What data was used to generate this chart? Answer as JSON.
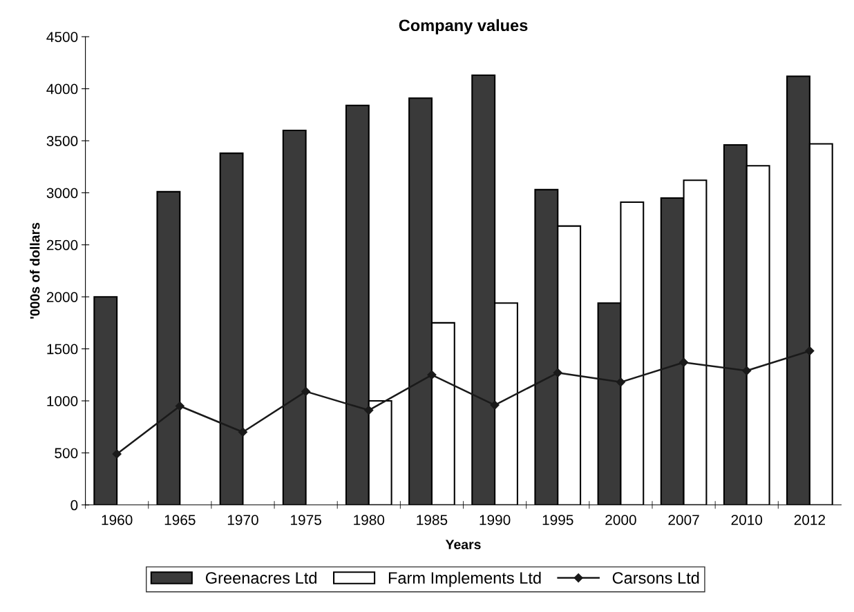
{
  "chart_data": {
    "type": "bar",
    "title": "Company values",
    "xlabel": "Years",
    "ylabel": "'000s of dollars",
    "categories": [
      "1960",
      "1965",
      "1970",
      "1975",
      "1980",
      "1985",
      "1990",
      "1995",
      "2000",
      "2007",
      "2010",
      "2012"
    ],
    "series": [
      {
        "name": "Greenacres Ltd",
        "color": "#3a3a3a",
        "values": [
          2000,
          3010,
          3380,
          3600,
          3840,
          3910,
          4130,
          3030,
          1940,
          2950,
          3460,
          4120
        ]
      },
      {
        "name": "Farm Implements Ltd",
        "color": "#ffffff",
        "values": [
          null,
          null,
          null,
          null,
          1000,
          1750,
          1940,
          2680,
          2910,
          3120,
          3260,
          3470
        ]
      },
      {
        "name": "Carsons Ltd",
        "type": "line",
        "color": "#1a1a1a",
        "marker": "diamond",
        "values": [
          490,
          950,
          700,
          1090,
          910,
          1250,
          960,
          1270,
          1180,
          1370,
          1290,
          1480
        ]
      }
    ],
    "ylim": [
      0,
      4500
    ],
    "yticks": [
      0,
      500,
      1000,
      1500,
      2000,
      2500,
      3000,
      3500,
      4000,
      4500
    ],
    "grid": false,
    "legend": "bottom"
  }
}
